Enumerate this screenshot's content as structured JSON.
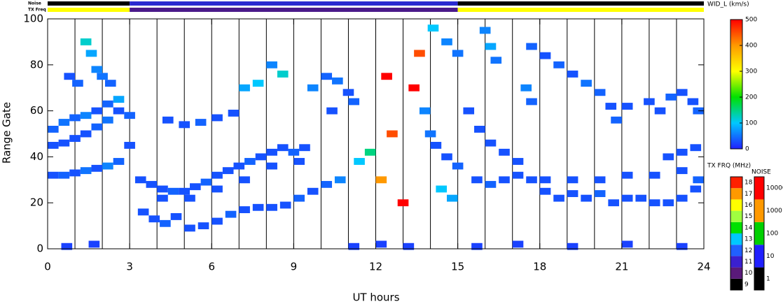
{
  "chart_data": {
    "type": "heatmap",
    "xlabel": "UT hours",
    "ylabel": "Range Gate",
    "xlim": [
      0,
      24
    ],
    "ylim": [
      0,
      100
    ],
    "xticks": [
      0,
      3,
      6,
      9,
      12,
      15,
      18,
      21,
      24
    ],
    "yticks": [
      0,
      20,
      40,
      60,
      80,
      100
    ],
    "vlines": [
      1,
      2,
      3,
      4,
      5,
      6,
      7,
      8,
      9,
      10,
      11,
      12,
      13,
      14,
      15,
      16,
      17,
      18,
      19,
      20,
      21,
      22,
      23
    ],
    "cell": [
      0.4,
      3
    ],
    "colorbar": {
      "title": "WID_L (km/s)",
      "zlim": [
        0,
        500
      ],
      "ticks": [
        0,
        100,
        200,
        300,
        400,
        500
      ],
      "colorscale": [
        "#2020ff",
        "#00c8ff",
        "#00e000",
        "#ffff00",
        "#ff9900",
        "#ff0000"
      ]
    },
    "points": [
      [
        0,
        32,
        30
      ],
      [
        0.4,
        32,
        40
      ],
      [
        0.8,
        33,
        30
      ],
      [
        1.2,
        34,
        50
      ],
      [
        1.6,
        35,
        30
      ],
      [
        2,
        36,
        60
      ],
      [
        2.4,
        38,
        40
      ],
      [
        0,
        45,
        30
      ],
      [
        0,
        52,
        40
      ],
      [
        0.4,
        46,
        30
      ],
      [
        0.4,
        55,
        50
      ],
      [
        0.8,
        48,
        30
      ],
      [
        0.8,
        57,
        40
      ],
      [
        1.2,
        50,
        30
      ],
      [
        1.2,
        58,
        60
      ],
      [
        1.6,
        53,
        40
      ],
      [
        1.6,
        60,
        30
      ],
      [
        2,
        56,
        50
      ],
      [
        2,
        63,
        40
      ],
      [
        2.4,
        60,
        30
      ],
      [
        2.4,
        65,
        80
      ],
      [
        2.8,
        58,
        40
      ],
      [
        2.8,
        45,
        30
      ],
      [
        1.2,
        90,
        120
      ],
      [
        1.4,
        85,
        80
      ],
      [
        1.6,
        78,
        60
      ],
      [
        1.8,
        75,
        50
      ],
      [
        2.1,
        72,
        40
      ],
      [
        0.6,
        75,
        30
      ],
      [
        0.9,
        72,
        40
      ],
      [
        3.2,
        30,
        30
      ],
      [
        3.6,
        28,
        30
      ],
      [
        4,
        26,
        30
      ],
      [
        4.4,
        25,
        40
      ],
      [
        4.8,
        25,
        30
      ],
      [
        5.2,
        27,
        30
      ],
      [
        5.6,
        29,
        40
      ],
      [
        6,
        32,
        30
      ],
      [
        6.4,
        34,
        30
      ],
      [
        6.8,
        36,
        30
      ],
      [
        7.2,
        38,
        40
      ],
      [
        7.6,
        40,
        30
      ],
      [
        8,
        42,
        30
      ],
      [
        8.4,
        44,
        30
      ],
      [
        8.8,
        42,
        40
      ],
      [
        9.2,
        44,
        30
      ],
      [
        4,
        22,
        30
      ],
      [
        5,
        22,
        30
      ],
      [
        6,
        26,
        30
      ],
      [
        7,
        30,
        30
      ],
      [
        8,
        36,
        30
      ],
      [
        9,
        38,
        30
      ],
      [
        3.3,
        16,
        30
      ],
      [
        3.7,
        13,
        30
      ],
      [
        4.1,
        11,
        40
      ],
      [
        4.5,
        14,
        30
      ],
      [
        5,
        9,
        30
      ],
      [
        5.5,
        10,
        30
      ],
      [
        6,
        12,
        30
      ],
      [
        6.5,
        15,
        40
      ],
      [
        7,
        17,
        30
      ],
      [
        7.5,
        18,
        30
      ],
      [
        8,
        18,
        30
      ],
      [
        8.5,
        19,
        30
      ],
      [
        9,
        22,
        40
      ],
      [
        9.5,
        25,
        30
      ],
      [
        10,
        28,
        40
      ],
      [
        10.5,
        30,
        60
      ],
      [
        4.2,
        56,
        30
      ],
      [
        4.8,
        54,
        30
      ],
      [
        5.4,
        55,
        40
      ],
      [
        6,
        57,
        30
      ],
      [
        6.6,
        59,
        30
      ],
      [
        7,
        70,
        80
      ],
      [
        7.5,
        72,
        100
      ],
      [
        8,
        80,
        60
      ],
      [
        8.4,
        76,
        120
      ],
      [
        9.5,
        70,
        60
      ],
      [
        10,
        75,
        40
      ],
      [
        10.4,
        73,
        50
      ],
      [
        10.8,
        68,
        30
      ],
      [
        11,
        64,
        40
      ],
      [
        10.2,
        60,
        30
      ],
      [
        11.2,
        38,
        100
      ],
      [
        11.6,
        42,
        150
      ],
      [
        12,
        30,
        400
      ],
      [
        12.4,
        50,
        450
      ],
      [
        12.8,
        20,
        500
      ],
      [
        13.2,
        70,
        500
      ],
      [
        13.4,
        85,
        450
      ],
      [
        12.2,
        75,
        500
      ],
      [
        13.6,
        60,
        60
      ],
      [
        13.8,
        50,
        50
      ],
      [
        14,
        45,
        30
      ],
      [
        14.4,
        40,
        30
      ],
      [
        14.8,
        36,
        40
      ],
      [
        14.2,
        26,
        100
      ],
      [
        14.6,
        22,
        80
      ],
      [
        14.4,
        90,
        60
      ],
      [
        14.8,
        85,
        50
      ],
      [
        13.9,
        96,
        100
      ],
      [
        15.2,
        60,
        30
      ],
      [
        15.6,
        52,
        30
      ],
      [
        16,
        46,
        30
      ],
      [
        16.5,
        42,
        30
      ],
      [
        17,
        38,
        30
      ],
      [
        15.5,
        30,
        30
      ],
      [
        16,
        28,
        40
      ],
      [
        16.5,
        30,
        30
      ],
      [
        17,
        32,
        30
      ],
      [
        17.5,
        30,
        30
      ],
      [
        18,
        25,
        30
      ],
      [
        18.5,
        22,
        30
      ],
      [
        19,
        24,
        30
      ],
      [
        19.5,
        22,
        30
      ],
      [
        20,
        24,
        40
      ],
      [
        20.5,
        20,
        30
      ],
      [
        21,
        22,
        30
      ],
      [
        21.5,
        22,
        30
      ],
      [
        22,
        20,
        30
      ],
      [
        22.5,
        20,
        30
      ],
      [
        23,
        22,
        30
      ],
      [
        23.5,
        26,
        30
      ],
      [
        23.6,
        30,
        40
      ],
      [
        18,
        30,
        30
      ],
      [
        19,
        30,
        30
      ],
      [
        20,
        30,
        30
      ],
      [
        21,
        32,
        30
      ],
      [
        22,
        32,
        30
      ],
      [
        23,
        34,
        30
      ],
      [
        15.8,
        95,
        60
      ],
      [
        16,
        88,
        80
      ],
      [
        16.2,
        82,
        50
      ],
      [
        17.5,
        88,
        40
      ],
      [
        18,
        84,
        30
      ],
      [
        18.5,
        80,
        40
      ],
      [
        19,
        76,
        30
      ],
      [
        19.5,
        72,
        50
      ],
      [
        20,
        68,
        40
      ],
      [
        20.4,
        62,
        30
      ],
      [
        20.6,
        56,
        40
      ],
      [
        21,
        62,
        30
      ],
      [
        21.8,
        64,
        30
      ],
      [
        22.2,
        60,
        30
      ],
      [
        22.6,
        66,
        40
      ],
      [
        23,
        68,
        30
      ],
      [
        23.4,
        64,
        30
      ],
      [
        23.6,
        60,
        40
      ],
      [
        0.5,
        1,
        20
      ],
      [
        1.5,
        2,
        20
      ],
      [
        11,
        1,
        20
      ],
      [
        12,
        2,
        20
      ],
      [
        13,
        1,
        20
      ],
      [
        15.5,
        1,
        20
      ],
      [
        17,
        2,
        20
      ],
      [
        19,
        1,
        20
      ],
      [
        21,
        2,
        20
      ],
      [
        23,
        1,
        20
      ],
      [
        17.3,
        70,
        60
      ],
      [
        17.5,
        64,
        40
      ],
      [
        22.5,
        40,
        30
      ],
      [
        23,
        42,
        30
      ],
      [
        23.5,
        44,
        30
      ]
    ],
    "noise_bar": {
      "label": "Noise",
      "segments": [
        {
          "start": 0,
          "end": 3,
          "color": "#000000"
        },
        {
          "start": 3,
          "end": 15,
          "color": "#2a2ad0"
        },
        {
          "start": 15,
          "end": 24,
          "color": "#000000"
        }
      ]
    },
    "tx_bar": {
      "label": "TX Freq",
      "segments": [
        {
          "start": 0,
          "end": 3,
          "color": "#ffff00"
        },
        {
          "start": 3,
          "end": 15,
          "color": "#4a1a8a"
        },
        {
          "start": 15,
          "end": 24,
          "color": "#ffff00"
        }
      ]
    },
    "tx_colorbar": {
      "title": "TX FRQ (MHz)",
      "ticks": [
        9,
        10,
        11,
        12,
        13,
        14,
        15,
        16,
        17,
        18
      ],
      "colors": [
        "#000000",
        "#5a1a7a",
        "#3a20d0",
        "#2060ff",
        "#00c8ff",
        "#00e000",
        "#a0ff40",
        "#ffff00",
        "#ff9900",
        "#ff2000"
      ]
    },
    "noise_colorbar": {
      "title": "NOISE",
      "ticks": [
        1,
        10,
        100,
        1000,
        10000
      ],
      "colors": [
        "#000000",
        "#2020ff",
        "#00d000",
        "#ff9900",
        "#ff0000"
      ]
    }
  }
}
